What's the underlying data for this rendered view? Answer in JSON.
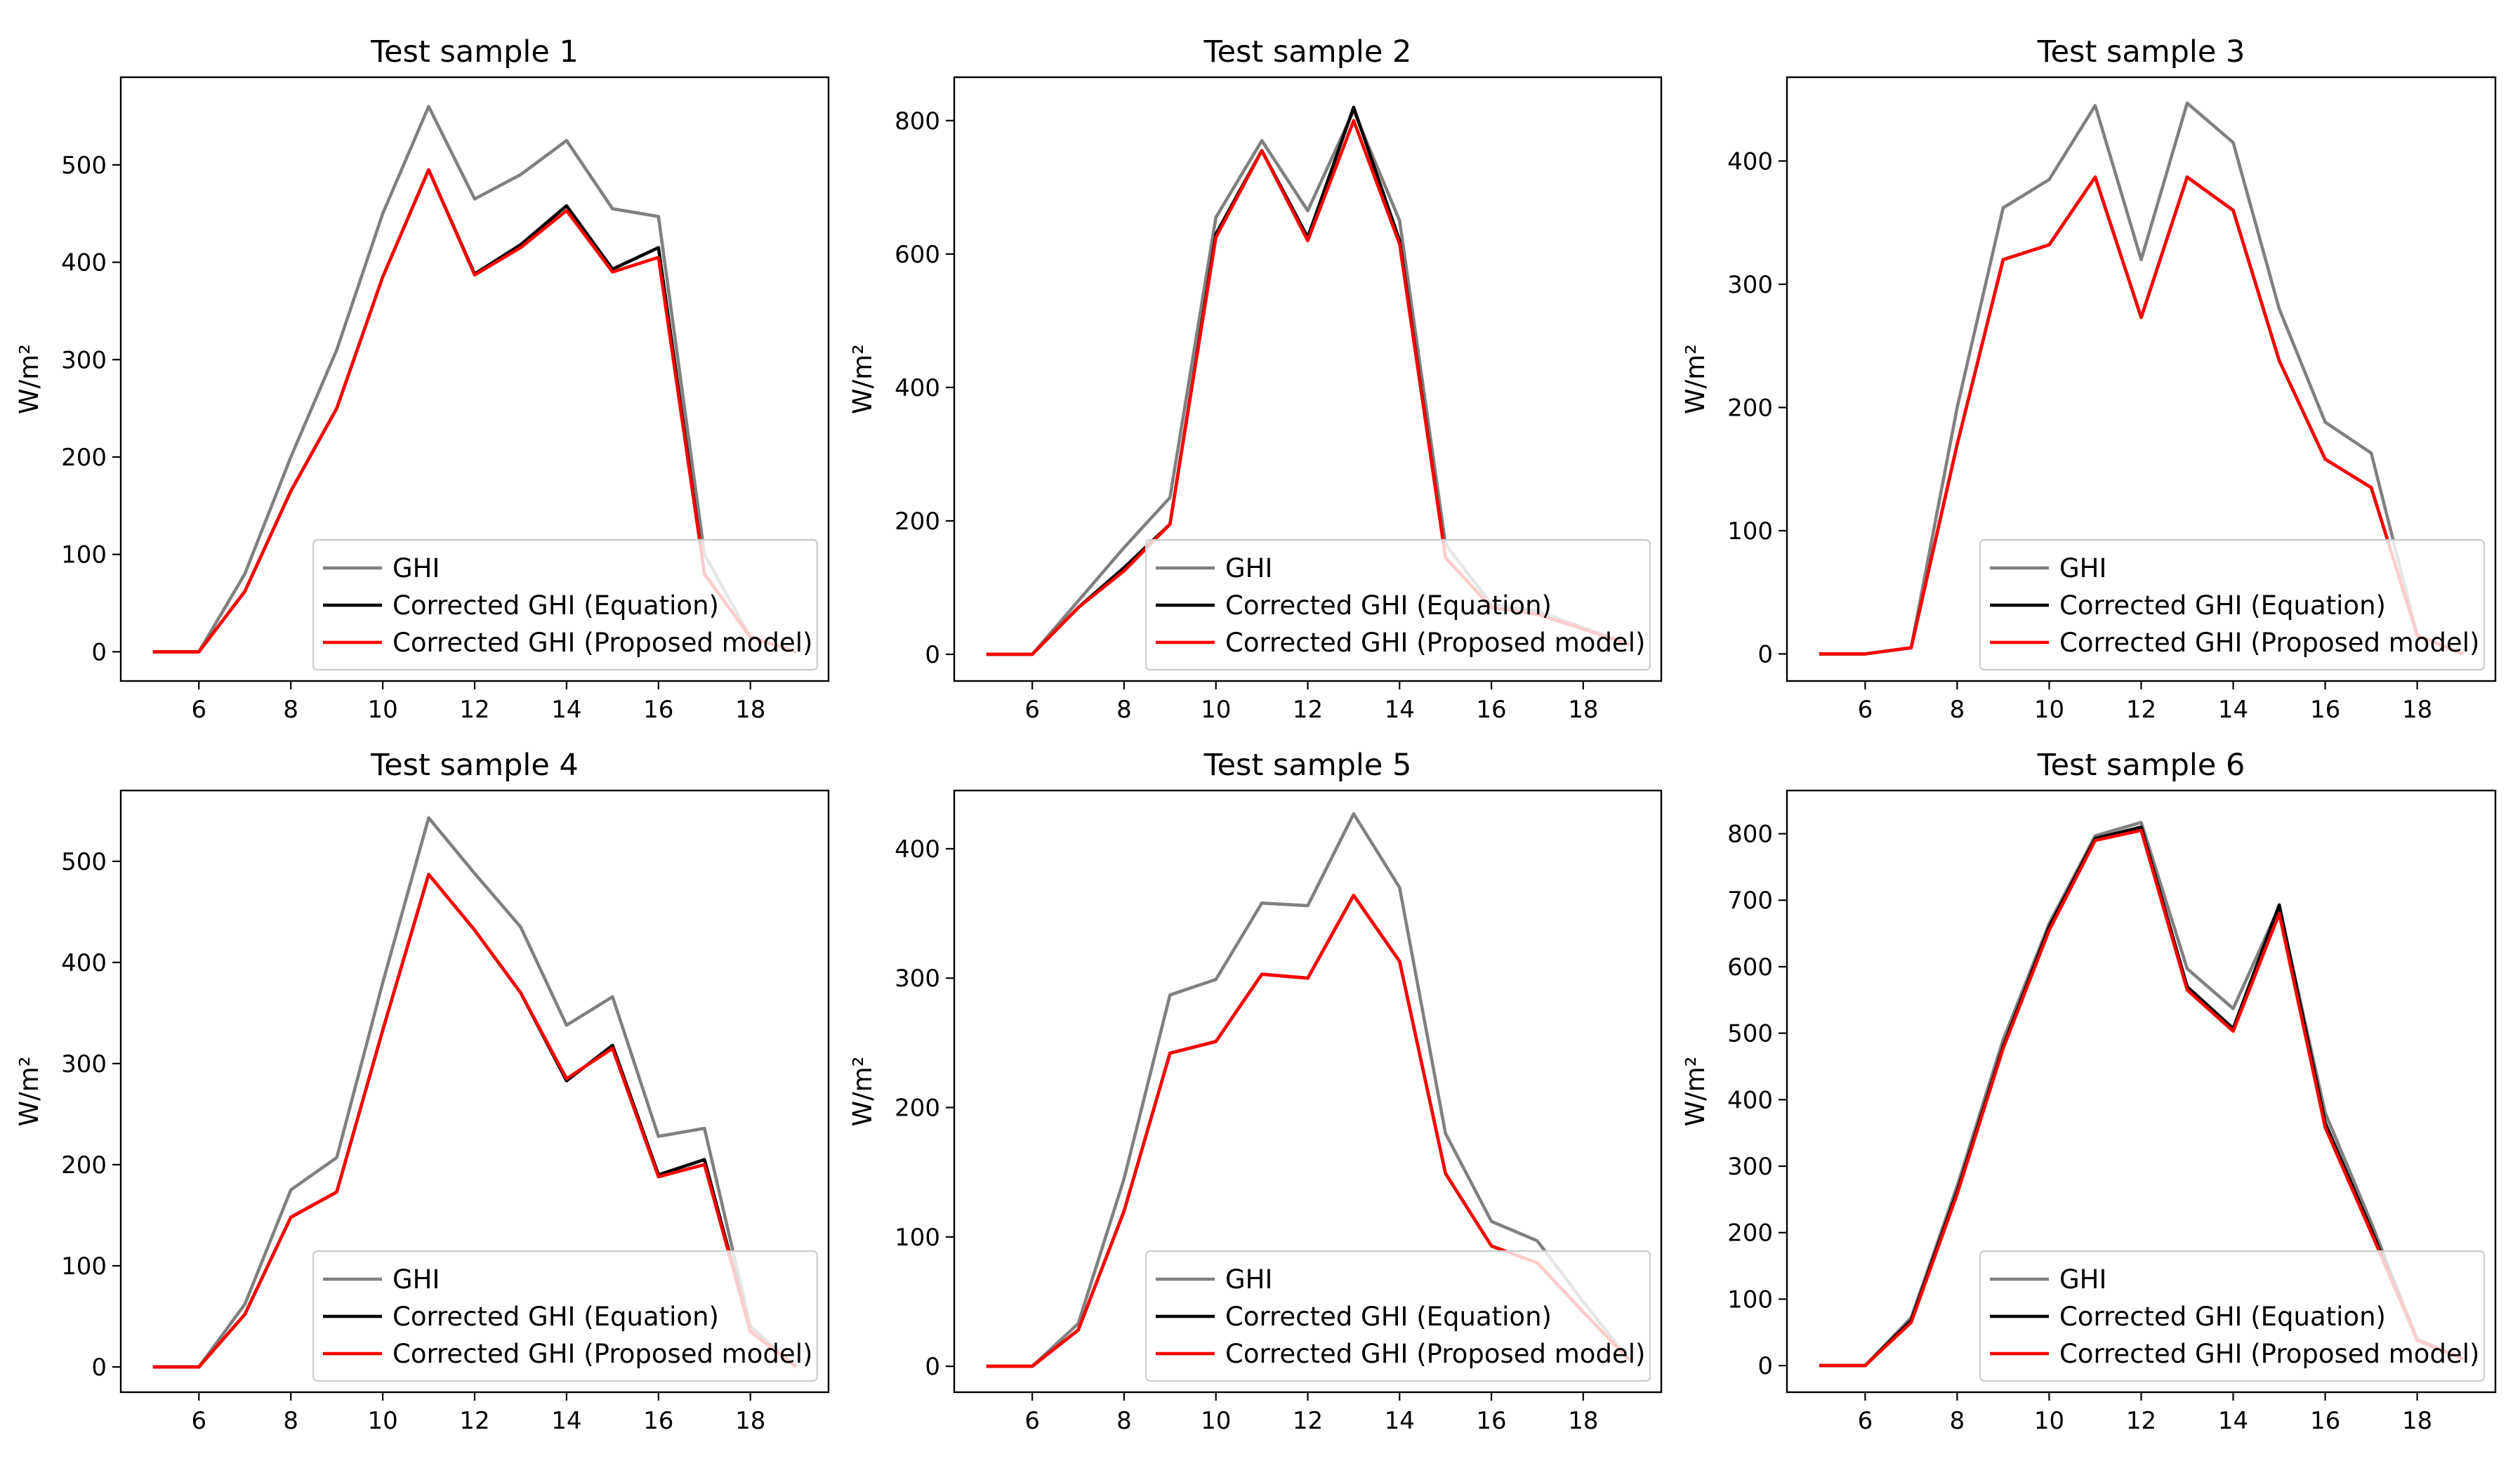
{
  "colors": {
    "GHI": "#808080",
    "Equation": "#000000",
    "Proposed": "#ff0000"
  },
  "chart_data": [
    {
      "type": "line",
      "title": "Test sample 1",
      "ylabel": "W/m²",
      "xlim": [
        4.3,
        19.7
      ],
      "ylim": [
        -30,
        590
      ],
      "xticks": [
        6,
        8,
        10,
        12,
        14,
        16,
        18
      ],
      "yticks": [
        0,
        100,
        200,
        300,
        400,
        500
      ],
      "x": [
        5,
        6,
        7,
        8,
        9,
        10,
        11,
        12,
        13,
        14,
        15,
        16,
        17,
        18,
        19
      ],
      "series": [
        {
          "name": "GHI",
          "color": "#808080",
          "values": [
            0,
            0,
            80,
            200,
            310,
            450,
            560,
            465,
            490,
            525,
            455,
            447,
            100,
            15,
            0
          ]
        },
        {
          "name": "Corrected GHI (Equation)",
          "color": "#000000",
          "values": [
            0,
            0,
            62,
            165,
            250,
            385,
            495,
            388,
            418,
            458,
            393,
            415,
            80,
            15,
            0
          ]
        },
        {
          "name": "Corrected GHI (Proposed model)",
          "color": "#ff0000",
          "values": [
            0,
            0,
            62,
            165,
            250,
            385,
            495,
            387,
            415,
            453,
            390,
            405,
            80,
            15,
            0
          ]
        }
      ],
      "legend_position": "lower right"
    },
    {
      "type": "line",
      "title": "Test sample 2",
      "ylabel": "W/m²",
      "xlim": [
        4.3,
        19.7
      ],
      "ylim": [
        -40,
        865
      ],
      "xticks": [
        6,
        8,
        10,
        12,
        14,
        16,
        18
      ],
      "yticks": [
        0,
        200,
        400,
        600,
        800
      ],
      "x": [
        5,
        6,
        7,
        8,
        9,
        10,
        11,
        12,
        13,
        14,
        15,
        16,
        17,
        18,
        19
      ],
      "series": [
        {
          "name": "GHI",
          "color": "#808080",
          "values": [
            0,
            0,
            80,
            160,
            235,
            655,
            770,
            665,
            815,
            650,
            165,
            75,
            65,
            40,
            15
          ]
        },
        {
          "name": "Corrected GHI (Equation)",
          "color": "#000000",
          "values": [
            0,
            0,
            70,
            130,
            195,
            630,
            755,
            625,
            820,
            620,
            145,
            70,
            60,
            38,
            15
          ]
        },
        {
          "name": "Corrected GHI (Proposed model)",
          "color": "#ff0000",
          "values": [
            0,
            0,
            70,
            125,
            195,
            625,
            755,
            620,
            800,
            615,
            145,
            70,
            60,
            38,
            15
          ]
        }
      ],
      "legend_position": "lower right"
    },
    {
      "type": "line",
      "title": "Test sample 3",
      "ylabel": "W/m²",
      "xlim": [
        4.3,
        19.7
      ],
      "ylim": [
        -22,
        468
      ],
      "xticks": [
        6,
        8,
        10,
        12,
        14,
        16,
        18
      ],
      "yticks": [
        0,
        100,
        200,
        300,
        400
      ],
      "x": [
        5,
        6,
        7,
        8,
        9,
        10,
        11,
        12,
        13,
        14,
        15,
        16,
        17,
        18,
        19
      ],
      "series": [
        {
          "name": "GHI",
          "color": "#808080",
          "values": [
            0,
            0,
            5,
            200,
            362,
            385,
            445,
            320,
            447,
            415,
            280,
            188,
            163,
            15,
            0
          ]
        },
        {
          "name": "Corrected GHI (Equation)",
          "color": "#000000",
          "values": [
            0,
            0,
            5,
            170,
            320,
            332,
            387,
            273,
            387,
            360,
            238,
            158,
            135,
            15,
            0
          ]
        },
        {
          "name": "Corrected GHI (Proposed model)",
          "color": "#ff0000",
          "values": [
            0,
            0,
            5,
            170,
            320,
            332,
            387,
            273,
            387,
            360,
            238,
            158,
            135,
            15,
            0
          ]
        }
      ],
      "legend_position": "lower right"
    },
    {
      "type": "line",
      "title": "Test sample 4",
      "ylabel": "W/m²",
      "xlim": [
        4.3,
        19.7
      ],
      "ylim": [
        -25,
        570
      ],
      "xticks": [
        6,
        8,
        10,
        12,
        14,
        16,
        18
      ],
      "yticks": [
        0,
        100,
        200,
        300,
        400,
        500
      ],
      "x": [
        5,
        6,
        7,
        8,
        9,
        10,
        11,
        12,
        13,
        14,
        15,
        16,
        17,
        18,
        19
      ],
      "series": [
        {
          "name": "GHI",
          "color": "#808080",
          "values": [
            0,
            0,
            62,
            175,
            207,
            380,
            543,
            488,
            435,
            338,
            366,
            228,
            236,
            40,
            0
          ]
        },
        {
          "name": "Corrected GHI (Equation)",
          "color": "#000000",
          "values": [
            0,
            0,
            52,
            148,
            173,
            333,
            487,
            432,
            370,
            283,
            318,
            190,
            205,
            35,
            0
          ]
        },
        {
          "name": "Corrected GHI (Proposed model)",
          "color": "#ff0000",
          "values": [
            0,
            0,
            52,
            148,
            173,
            333,
            487,
            432,
            370,
            285,
            315,
            188,
            200,
            35,
            0
          ]
        }
      ],
      "legend_position": "lower right"
    },
    {
      "type": "line",
      "title": "Test sample 5",
      "ylabel": "W/m²",
      "xlim": [
        4.3,
        19.7
      ],
      "ylim": [
        -20,
        445
      ],
      "xticks": [
        6,
        8,
        10,
        12,
        14,
        16,
        18
      ],
      "yticks": [
        0,
        100,
        200,
        300,
        400
      ],
      "x": [
        5,
        6,
        7,
        8,
        9,
        10,
        11,
        12,
        13,
        14,
        15,
        16,
        17,
        18,
        19
      ],
      "series": [
        {
          "name": "GHI",
          "color": "#808080",
          "values": [
            0,
            0,
            33,
            145,
            287,
            299,
            358,
            356,
            427,
            370,
            180,
            112,
            97,
            50,
            5
          ]
        },
        {
          "name": "Corrected GHI (Equation)",
          "color": "#000000",
          "values": [
            0,
            0,
            28,
            120,
            242,
            251,
            303,
            300,
            364,
            313,
            149,
            93,
            80,
            42,
            5
          ]
        },
        {
          "name": "Corrected GHI (Proposed model)",
          "color": "#ff0000",
          "values": [
            0,
            0,
            28,
            120,
            242,
            251,
            303,
            300,
            364,
            313,
            149,
            93,
            80,
            42,
            5
          ]
        }
      ],
      "legend_position": "lower right"
    },
    {
      "type": "line",
      "title": "Test sample 6",
      "ylabel": "W/m²",
      "xlim": [
        4.3,
        19.7
      ],
      "ylim": [
        -40,
        865
      ],
      "xticks": [
        6,
        8,
        10,
        12,
        14,
        16,
        18
      ],
      "yticks": [
        0,
        100,
        200,
        300,
        400,
        500,
        600,
        700,
        800
      ],
      "x": [
        5,
        6,
        7,
        8,
        9,
        10,
        11,
        12,
        13,
        14,
        15,
        16,
        17,
        18,
        19
      ],
      "series": [
        {
          "name": "GHI",
          "color": "#808080",
          "values": [
            0,
            0,
            72,
            270,
            490,
            665,
            797,
            817,
            597,
            537,
            690,
            380,
            215,
            40,
            10
          ]
        },
        {
          "name": "Corrected GHI (Equation)",
          "color": "#000000",
          "values": [
            0,
            0,
            68,
            262,
            480,
            660,
            793,
            810,
            570,
            507,
            693,
            365,
            205,
            38,
            10
          ]
        },
        {
          "name": "Corrected GHI (Proposed model)",
          "color": "#ff0000",
          "values": [
            0,
            0,
            65,
            258,
            477,
            655,
            790,
            805,
            565,
            503,
            680,
            358,
            200,
            38,
            10
          ]
        }
      ],
      "legend_position": "lower right"
    }
  ]
}
